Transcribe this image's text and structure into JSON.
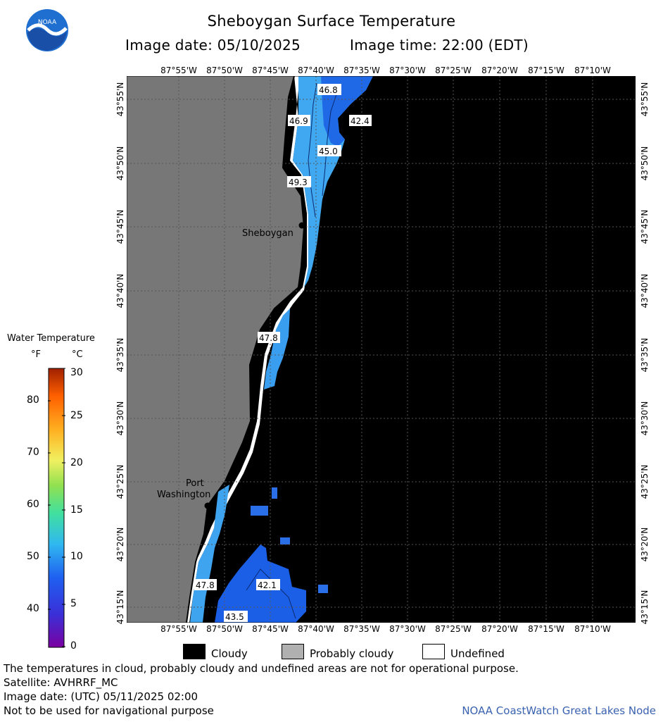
{
  "header": {
    "title": "Sheboygan Surface Temperature",
    "image_date": "Image date: 05/10/2025",
    "image_time": "Image time: 22:00 (EDT)",
    "logo_text": "NOAA"
  },
  "map": {
    "longitude_labels": [
      "87°55'W",
      "87°50'W",
      "87°45'W",
      "87°40'W",
      "87°35'W",
      "87°30'W",
      "87°25'W",
      "87°20'W",
      "87°15'W",
      "87°10'W"
    ],
    "latitude_labels": [
      "43°55'N",
      "43°50'N",
      "43°45'N",
      "43°40'N",
      "43°35'N",
      "43°30'N",
      "43°25'N",
      "43°20'N",
      "43°15'N"
    ],
    "cities": {
      "sheboygan": "Sheboygan",
      "port_washington_line1": "Port",
      "port_washington_line2": "Washington"
    },
    "contour_labels": [
      "46.8",
      "46.9",
      "42.4",
      "45.0",
      "49.3",
      "47.8",
      "47.8",
      "42.1",
      "43.5"
    ],
    "colors": {
      "land": "#777777",
      "cloudy": "#000000",
      "water_warm": "#40a8f0",
      "water_cold": "#1a60e8",
      "undefined": "#ffffff"
    }
  },
  "legend": {
    "title": "Water Temperature",
    "unit_f": "°F",
    "unit_c": "°C",
    "fahrenheit_ticks": [
      "80",
      "70",
      "60",
      "50",
      "40"
    ],
    "celsius_ticks": [
      "30",
      "25",
      "20",
      "15",
      "10",
      "5",
      "0"
    ]
  },
  "key": {
    "cloudy": "Cloudy",
    "probably_cloudy": "Probably cloudy",
    "undefined": "Undefined"
  },
  "footer": {
    "disclaimer": "The temperatures in cloud, probably cloudy and undefined areas are not for operational purpose.",
    "satellite": "Satellite: AVHRRF_MC",
    "utc_date": "Image date: (UTC) 05/11/2025  02:00",
    "navigation": "Not to be used for navigational purpose",
    "credit": "NOAA CoastWatch Great Lakes Node"
  }
}
